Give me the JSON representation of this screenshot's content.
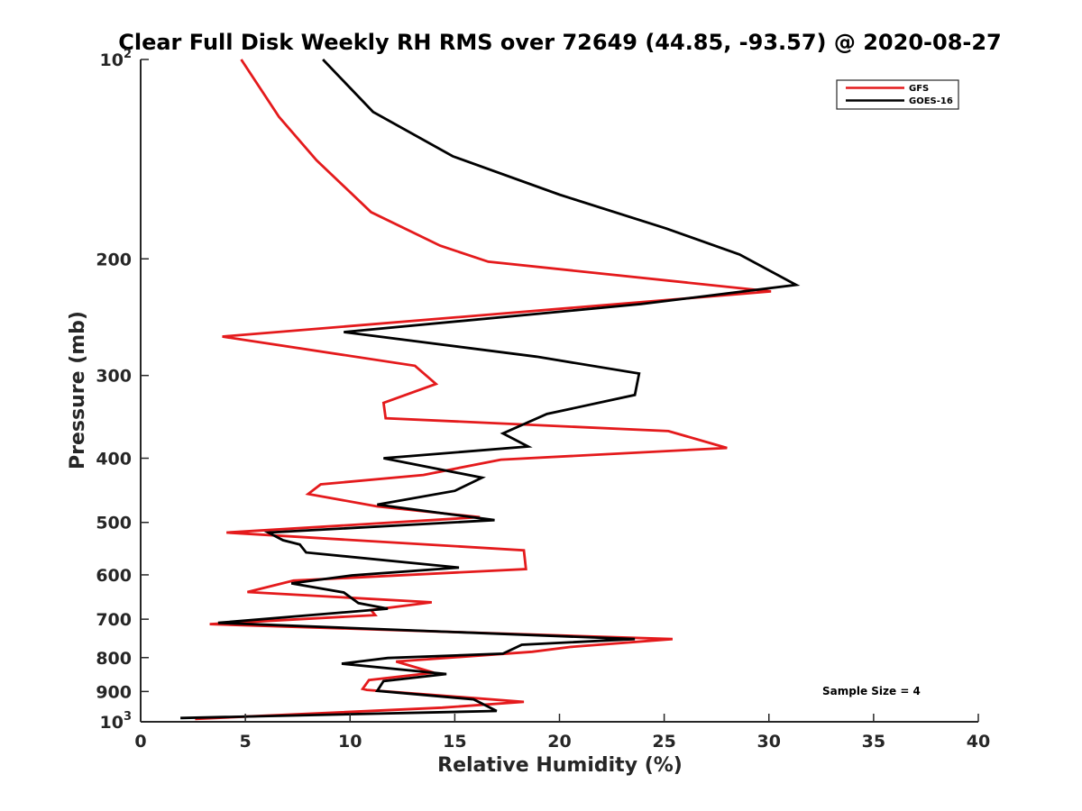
{
  "chart_data": {
    "type": "line",
    "title": "Clear Full Disk Weekly RH RMS over 72649 (44.85, -93.57) @ 2020-08-27",
    "xlabel": "Relative Humidity (%)",
    "ylabel": "Pressure (mb)",
    "xlim": [
      0,
      40
    ],
    "ylim": [
      100,
      1000
    ],
    "y_scale": "log",
    "y_reversed": true,
    "grid": false,
    "legend_position": "top-right",
    "x_ticks": [
      "0",
      "5",
      "10",
      "15",
      "20",
      "25",
      "30",
      "35",
      "40"
    ],
    "y_ticks": [
      {
        "value": 100,
        "base": "10",
        "exp": "2"
      },
      {
        "value": 200,
        "label": "200"
      },
      {
        "value": 300,
        "label": "300"
      },
      {
        "value": 400,
        "label": "400"
      },
      {
        "value": 500,
        "label": "500"
      },
      {
        "value": 600,
        "label": "600"
      },
      {
        "value": 700,
        "label": "700"
      },
      {
        "value": 800,
        "label": "800"
      },
      {
        "value": 900,
        "label": "900"
      },
      {
        "value": 1000,
        "base": "10",
        "exp": "3"
      }
    ],
    "series": [
      {
        "name": "GFS",
        "color": "#e41a1c",
        "points": [
          [
            4.8,
            100
          ],
          [
            6.6,
            122
          ],
          [
            8.4,
            142
          ],
          [
            11.0,
            170
          ],
          [
            14.3,
            191
          ],
          [
            16.6,
            202
          ],
          [
            30.1,
            224
          ],
          [
            3.9,
            262
          ],
          [
            13.1,
            290
          ],
          [
            14.1,
            309
          ],
          [
            11.6,
            330
          ],
          [
            11.7,
            348
          ],
          [
            25.2,
            364
          ],
          [
            28.0,
            386
          ],
          [
            17.2,
            402
          ],
          [
            13.5,
            424
          ],
          [
            8.6,
            438
          ],
          [
            8.0,
            453
          ],
          [
            11.3,
            473
          ],
          [
            16.2,
            491
          ],
          [
            4.1,
            518
          ],
          [
            18.3,
            551
          ],
          [
            18.4,
            588
          ],
          [
            7.3,
            612
          ],
          [
            5.1,
            637
          ],
          [
            13.9,
            660
          ],
          [
            11.0,
            678
          ],
          [
            11.2,
            690
          ],
          [
            3.3,
            712
          ],
          [
            25.4,
            750
          ],
          [
            20.5,
            771
          ],
          [
            18.7,
            784
          ],
          [
            12.2,
            811
          ],
          [
            14.0,
            843
          ],
          [
            10.9,
            865
          ],
          [
            10.6,
            892
          ],
          [
            10.8,
            895
          ],
          [
            18.3,
            933
          ],
          [
            14.4,
            952
          ],
          [
            2.6,
            990
          ]
        ]
      },
      {
        "name": "GOES-16",
        "color": "#000000",
        "points": [
          [
            8.7,
            100
          ],
          [
            11.1,
            120
          ],
          [
            14.9,
            140
          ],
          [
            20.0,
            160
          ],
          [
            25.1,
            180
          ],
          [
            28.6,
            197
          ],
          [
            31.3,
            219
          ],
          [
            23.9,
            234
          ],
          [
            9.7,
            258
          ],
          [
            18.9,
            281
          ],
          [
            23.8,
            298
          ],
          [
            23.6,
            321
          ],
          [
            19.4,
            343
          ],
          [
            17.3,
            367
          ],
          [
            18.5,
            384
          ],
          [
            11.6,
            400
          ],
          [
            16.3,
            428
          ],
          [
            15.0,
            448
          ],
          [
            11.3,
            470
          ],
          [
            16.9,
            496
          ],
          [
            6.1,
            518
          ],
          [
            6.8,
            532
          ],
          [
            7.6,
            540
          ],
          [
            7.9,
            555
          ],
          [
            15.2,
            585
          ],
          [
            10.1,
            601
          ],
          [
            7.2,
            618
          ],
          [
            9.7,
            638
          ],
          [
            10.4,
            662
          ],
          [
            11.8,
            675
          ],
          [
            3.7,
            709
          ],
          [
            23.6,
            750
          ],
          [
            18.2,
            765
          ],
          [
            17.3,
            789
          ],
          [
            11.8,
            801
          ],
          [
            9.6,
            817
          ],
          [
            14.6,
            847
          ],
          [
            11.6,
            868
          ],
          [
            11.3,
            898
          ],
          [
            15.9,
            925
          ],
          [
            17.0,
            963
          ],
          [
            1.9,
            987
          ]
        ]
      }
    ],
    "annotations": [
      "Sample Size = 4"
    ]
  }
}
